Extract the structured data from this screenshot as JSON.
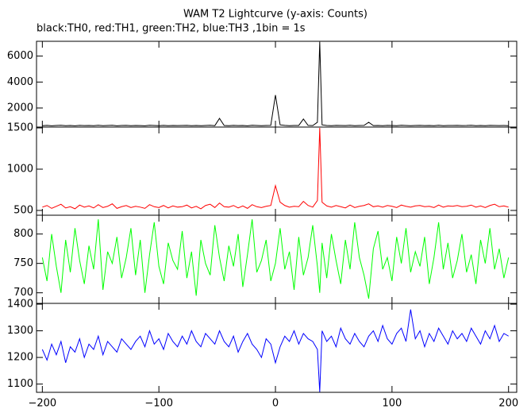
{
  "chart_data": [
    {
      "type": "line",
      "title": "WAM T2 Lightcurve (y-axis: Counts)",
      "subtitle": "black:TH0, red:TH1, green:TH2, blue:TH3 ,1bin = 1s",
      "color": "#000000",
      "x": [
        -200,
        -196,
        -192,
        -188,
        -184,
        -180,
        -176,
        -172,
        -168,
        -164,
        -160,
        -156,
        -152,
        -148,
        -144,
        -140,
        -136,
        -132,
        -128,
        -124,
        -120,
        -116,
        -112,
        -108,
        -104,
        -100,
        -96,
        -92,
        -88,
        -84,
        -80,
        -76,
        -72,
        -68,
        -64,
        -60,
        -56,
        -52,
        -48,
        -44,
        -40,
        -36,
        -32,
        -28,
        -24,
        -20,
        -16,
        -12,
        -8,
        -4,
        0,
        4,
        8,
        12,
        16,
        20,
        24,
        28,
        32,
        36,
        38,
        40,
        44,
        48,
        52,
        56,
        60,
        64,
        68,
        72,
        76,
        80,
        84,
        88,
        92,
        96,
        100,
        104,
        108,
        112,
        116,
        120,
        124,
        128,
        132,
        136,
        140,
        144,
        148,
        152,
        156,
        160,
        164,
        168,
        172,
        176,
        180,
        184,
        188,
        192,
        196,
        200
      ],
      "values": [
        640,
        660,
        630,
        650,
        670,
        640,
        655,
        630,
        660,
        645,
        650,
        635,
        665,
        640,
        655,
        670,
        630,
        650,
        660,
        640,
        655,
        645,
        630,
        665,
        650,
        640,
        660,
        635,
        655,
        645,
        650,
        660,
        640,
        655,
        635,
        650,
        665,
        640,
        1200,
        650,
        640,
        660,
        645,
        655,
        630,
        665,
        650,
        640,
        655,
        660,
        3000,
        700,
        660,
        640,
        650,
        655,
        1150,
        660,
        645,
        900,
        7100,
        700,
        655,
        640,
        660,
        650,
        645,
        665,
        635,
        650,
        660,
        900,
        645,
        655,
        640,
        660,
        650,
        635,
        665,
        650,
        640,
        655,
        660,
        645,
        650,
        635,
        665,
        640,
        655,
        650,
        660,
        645,
        650,
        665,
        640,
        655,
        635,
        660,
        650,
        645,
        655,
        640
      ],
      "xlim": [
        -205,
        207
      ],
      "ylim": [
        530,
        7140
      ],
      "yticks": [
        2000,
        4000,
        6000
      ]
    },
    {
      "type": "line",
      "color": "#ff0000",
      "x": [
        -200,
        -196,
        -192,
        -188,
        -184,
        -180,
        -176,
        -172,
        -168,
        -164,
        -160,
        -156,
        -152,
        -148,
        -144,
        -140,
        -136,
        -132,
        -128,
        -124,
        -120,
        -116,
        -112,
        -108,
        -104,
        -100,
        -96,
        -92,
        -88,
        -84,
        -80,
        -76,
        -72,
        -68,
        -64,
        -60,
        -56,
        -52,
        -48,
        -44,
        -40,
        -36,
        -32,
        -28,
        -24,
        -20,
        -16,
        -12,
        -8,
        -4,
        0,
        4,
        8,
        12,
        16,
        20,
        24,
        28,
        32,
        36,
        38,
        40,
        44,
        48,
        52,
        56,
        60,
        64,
        68,
        72,
        76,
        80,
        84,
        88,
        92,
        96,
        100,
        104,
        108,
        112,
        116,
        120,
        124,
        128,
        132,
        136,
        140,
        144,
        148,
        152,
        156,
        160,
        164,
        168,
        172,
        176,
        180,
        184,
        188,
        192,
        196,
        200
      ],
      "values": [
        540,
        560,
        525,
        550,
        575,
        530,
        545,
        520,
        565,
        540,
        555,
        530,
        570,
        535,
        550,
        580,
        525,
        545,
        560,
        535,
        550,
        540,
        525,
        570,
        545,
        535,
        560,
        530,
        555,
        540,
        545,
        565,
        530,
        550,
        520,
        560,
        575,
        535,
        590,
        545,
        540,
        560,
        530,
        555,
        525,
        570,
        545,
        535,
        550,
        560,
        800,
        600,
        560,
        540,
        550,
        545,
        610,
        560,
        540,
        620,
        1500,
        600,
        555,
        540,
        560,
        545,
        530,
        565,
        535,
        550,
        560,
        580,
        545,
        555,
        540,
        560,
        550,
        535,
        565,
        550,
        540,
        555,
        560,
        545,
        550,
        535,
        565,
        540,
        555,
        550,
        560,
        545,
        550,
        565,
        540,
        555,
        535,
        560,
        575,
        545,
        555,
        540
      ],
      "xlim": [
        -205,
        207
      ],
      "ylim": [
        442,
        1510
      ],
      "yticks": [
        500,
        1000,
        1500
      ]
    },
    {
      "type": "line",
      "color": "#00ff00",
      "x": [
        -200,
        -196,
        -192,
        -188,
        -184,
        -180,
        -176,
        -172,
        -168,
        -164,
        -160,
        -156,
        -152,
        -148,
        -144,
        -140,
        -136,
        -132,
        -128,
        -124,
        -120,
        -116,
        -112,
        -108,
        -104,
        -100,
        -96,
        -92,
        -88,
        -84,
        -80,
        -76,
        -72,
        -68,
        -64,
        -60,
        -56,
        -52,
        -48,
        -44,
        -40,
        -36,
        -32,
        -28,
        -24,
        -20,
        -16,
        -12,
        -8,
        -4,
        0,
        4,
        8,
        12,
        16,
        20,
        24,
        28,
        32,
        36,
        38,
        40,
        44,
        48,
        52,
        56,
        60,
        64,
        68,
        72,
        76,
        80,
        84,
        88,
        92,
        96,
        100,
        104,
        108,
        112,
        116,
        120,
        124,
        128,
        132,
        136,
        140,
        144,
        148,
        152,
        156,
        160,
        164,
        168,
        172,
        176,
        180,
        184,
        188,
        192,
        196,
        200
      ],
      "values": [
        760,
        720,
        800,
        745,
        700,
        790,
        735,
        810,
        755,
        715,
        780,
        740,
        825,
        705,
        770,
        750,
        795,
        725,
        760,
        810,
        730,
        790,
        700,
        765,
        820,
        745,
        715,
        785,
        755,
        740,
        805,
        725,
        770,
        695,
        790,
        750,
        730,
        815,
        760,
        720,
        780,
        745,
        800,
        710,
        765,
        825,
        735,
        755,
        790,
        720,
        750,
        810,
        740,
        770,
        705,
        795,
        730,
        760,
        815,
        745,
        700,
        785,
        725,
        800,
        755,
        715,
        790,
        740,
        820,
        760,
        730,
        690,
        775,
        805,
        740,
        760,
        720,
        795,
        750,
        810,
        735,
        770,
        745,
        795,
        715,
        760,
        820,
        740,
        785,
        725,
        755,
        800,
        735,
        765,
        715,
        790,
        750,
        810,
        740,
        775,
        725,
        760
      ],
      "xlim": [
        -205,
        207
      ],
      "ylim": [
        682,
        832
      ],
      "yticks": [
        700,
        750,
        800
      ]
    },
    {
      "type": "line",
      "color": "#0000ff",
      "x": [
        -200,
        -196,
        -192,
        -188,
        -184,
        -180,
        -176,
        -172,
        -168,
        -164,
        -160,
        -156,
        -152,
        -148,
        -144,
        -140,
        -136,
        -132,
        -128,
        -124,
        -120,
        -116,
        -112,
        -108,
        -104,
        -100,
        -96,
        -92,
        -88,
        -84,
        -80,
        -76,
        -72,
        -68,
        -64,
        -60,
        -56,
        -52,
        -48,
        -44,
        -40,
        -36,
        -32,
        -28,
        -24,
        -20,
        -16,
        -12,
        -8,
        -4,
        0,
        4,
        8,
        12,
        16,
        20,
        24,
        28,
        32,
        36,
        38,
        40,
        44,
        48,
        52,
        56,
        60,
        64,
        68,
        72,
        76,
        80,
        84,
        88,
        92,
        96,
        100,
        104,
        108,
        112,
        116,
        120,
        124,
        128,
        132,
        136,
        140,
        144,
        148,
        152,
        156,
        160,
        164,
        168,
        172,
        176,
        180,
        184,
        188,
        192,
        196,
        200
      ],
      "values": [
        1230,
        1190,
        1250,
        1210,
        1260,
        1180,
        1240,
        1220,
        1270,
        1200,
        1250,
        1230,
        1280,
        1210,
        1260,
        1240,
        1220,
        1270,
        1250,
        1230,
        1260,
        1280,
        1240,
        1300,
        1250,
        1270,
        1230,
        1290,
        1260,
        1240,
        1280,
        1250,
        1300,
        1260,
        1240,
        1290,
        1270,
        1250,
        1300,
        1260,
        1240,
        1280,
        1220,
        1260,
        1290,
        1250,
        1230,
        1200,
        1270,
        1250,
        1180,
        1240,
        1280,
        1260,
        1300,
        1250,
        1290,
        1270,
        1260,
        1230,
        1070,
        1300,
        1260,
        1280,
        1240,
        1310,
        1270,
        1250,
        1290,
        1260,
        1240,
        1280,
        1300,
        1260,
        1320,
        1270,
        1250,
        1290,
        1310,
        1260,
        1380,
        1270,
        1300,
        1240,
        1290,
        1260,
        1310,
        1280,
        1250,
        1300,
        1270,
        1290,
        1260,
        1310,
        1280,
        1250,
        1300,
        1270,
        1320,
        1260,
        1290,
        1280
      ],
      "xlim": [
        -205,
        207
      ],
      "ylim": [
        1069,
        1403
      ],
      "yticks": [
        1100,
        1200,
        1300,
        1400
      ],
      "xticks": [
        {
          "value": -200,
          "label": "−200"
        },
        {
          "value": -100,
          "label": "−100"
        },
        0,
        100,
        200
      ]
    }
  ]
}
